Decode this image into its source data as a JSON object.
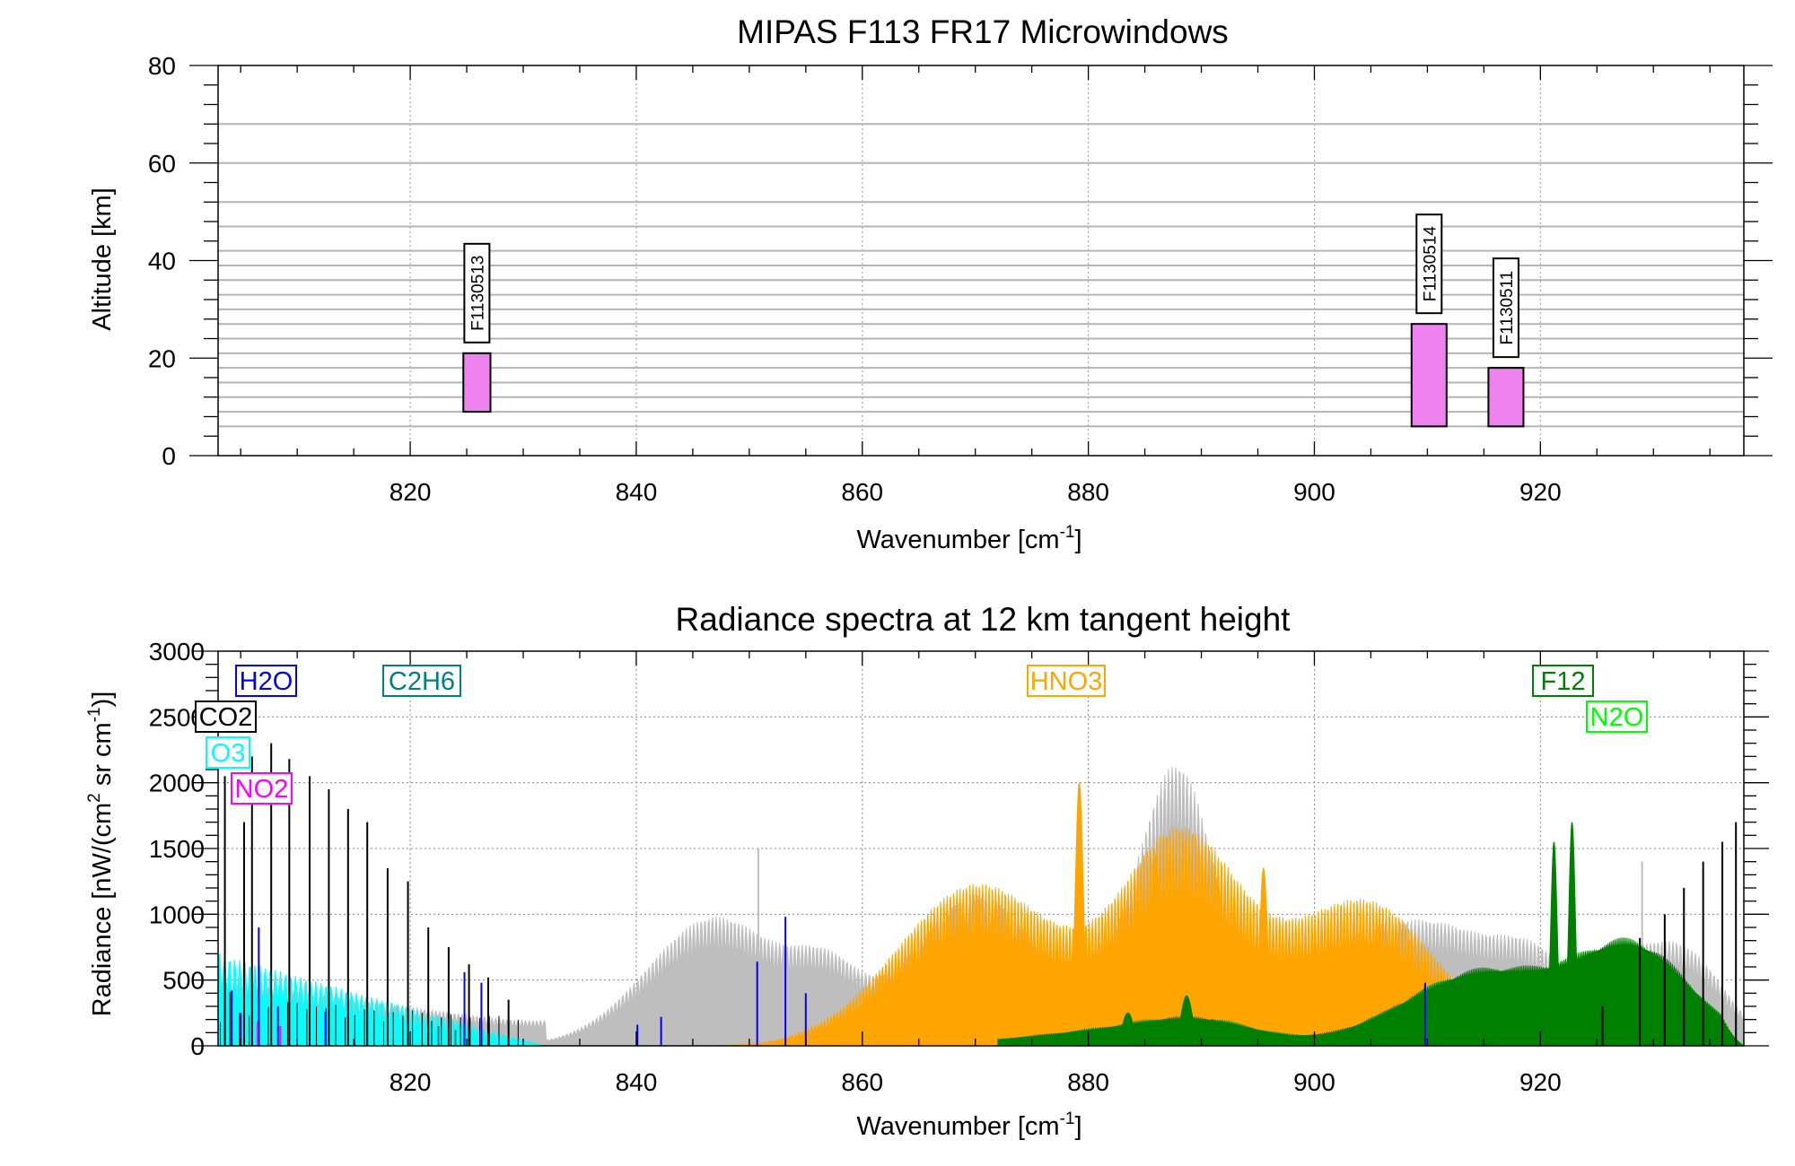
{
  "chart_data": [
    {
      "type": "bar",
      "title": "MIPAS F113 FR17 Microwindows",
      "xlabel": "Wavenumber [cm",
      "xlabel_sup": "-1",
      "xlabel_end": "]",
      "ylabel": "Altitude [km]",
      "xlim": [
        803,
        938
      ],
      "ylim": [
        0,
        80
      ],
      "xticks": [
        "820",
        "840",
        "860",
        "880",
        "900",
        "920"
      ],
      "yticks": [
        "0",
        "20",
        "40",
        "60",
        "80"
      ],
      "grid": true,
      "tangent_altitudes_km": [
        6,
        9,
        12,
        15,
        18,
        21,
        24,
        27,
        30,
        33,
        36,
        39,
        42,
        47,
        52,
        60,
        68
      ],
      "bar_color": "#ee82ee",
      "microwindows": [
        {
          "name": "F1130513",
          "x_start": 824.7,
          "x_end": 827.1,
          "alt_min": 9,
          "alt_max": 21
        },
        {
          "name": "F1130514",
          "x_start": 908.6,
          "x_end": 911.7,
          "alt_min": 6,
          "alt_max": 27
        },
        {
          "name": "F1130511",
          "x_start": 915.4,
          "x_end": 918.5,
          "alt_min": 6,
          "alt_max": 18
        }
      ]
    },
    {
      "type": "area",
      "title": "Radiance spectra at 12 km tangent height",
      "xlabel": "Wavenumber [cm",
      "xlabel_sup": "-1",
      "xlabel_end": "]",
      "ylabel": "Radiance [nW/(cm",
      "ylabel_sup1": "2",
      "ylabel_mid": " sr cm",
      "ylabel_sup2": "-1",
      "ylabel_end": ")]",
      "xlim": [
        803,
        938
      ],
      "ylim": [
        0,
        3000
      ],
      "xticks": [
        "820",
        "840",
        "860",
        "880",
        "900",
        "920"
      ],
      "yticks": [
        "0",
        "500",
        "1000",
        "1500",
        "2000",
        "2500",
        "3000"
      ],
      "grid": true,
      "total_spectrum_color": "#bebebe",
      "series": [
        {
          "name": "H2O",
          "color": "#0000ff",
          "lines": [
            [
              804.2,
              420
            ],
            [
              805.0,
              250
            ],
            [
              806.6,
              900
            ],
            [
              808.3,
              300
            ],
            [
              812.5,
              260
            ],
            [
              824.8,
              560
            ],
            [
              826.3,
              480
            ],
            [
              840.1,
              160
            ],
            [
              842.2,
              220
            ],
            [
              850.7,
              640
            ],
            [
              853.2,
              980
            ],
            [
              855.0,
              400
            ],
            [
              909.8,
              480
            ]
          ]
        },
        {
          "name": "C2H6",
          "color": "#008080",
          "lines": [
            [
              822.5,
              150
            ],
            [
              824.0,
              120
            ]
          ]
        },
        {
          "name": "CO2",
          "color": "#000000",
          "lines": [
            [
              803.6,
              2050
            ],
            [
              805.3,
              1700
            ],
            [
              806.0,
              2200
            ],
            [
              807.7,
              2300
            ],
            [
              809.3,
              2180
            ],
            [
              811.1,
              2050
            ],
            [
              812.8,
              1950
            ],
            [
              814.5,
              1800
            ],
            [
              816.2,
              1700
            ],
            [
              818.0,
              1350
            ],
            [
              819.8,
              1250
            ],
            [
              821.6,
              900
            ],
            [
              823.4,
              750
            ],
            [
              825.2,
              620
            ],
            [
              826.9,
              520
            ],
            [
              828.7,
              350
            ],
            [
              925.5,
              300
            ],
            [
              928.8,
              820
            ],
            [
              931.0,
              1000
            ],
            [
              932.7,
              1200
            ],
            [
              934.4,
              1400
            ],
            [
              936.1,
              1550
            ],
            [
              937.3,
              1700
            ]
          ]
        },
        {
          "name": "O3",
          "color": "#00ffff",
          "band_x": [
            803,
            832
          ],
          "band_peak": 700
        },
        {
          "name": "NO2",
          "color": "#ff00ff",
          "lines": [
            [
              806.5,
              180
            ],
            [
              808.5,
              150
            ]
          ]
        },
        {
          "name": "HNO3",
          "color": "#ffa500",
          "bands": [
            [
              870,
              1200,
              7
            ],
            [
              888,
              1300,
              5
            ],
            [
              905,
              850,
              6
            ]
          ],
          "peaks": [
            [
              879.2,
              2000
            ],
            [
              895.5,
              1350
            ],
            [
              886.0,
              1450
            ]
          ]
        },
        {
          "name": "F12",
          "color": "#008000",
          "bands": [
            [
              915,
              580,
              7
            ],
            [
              928.5,
              720,
              5
            ]
          ],
          "peaks": [
            [
              921.2,
              1550
            ],
            [
              922.8,
              1700
            ],
            [
              883.5,
              250
            ],
            [
              888.7,
              380
            ],
            [
              891.0,
              200
            ]
          ]
        },
        {
          "name": "N2O",
          "color": "#00ff00",
          "lines": []
        }
      ],
      "legend": [
        {
          "text": "H2O",
          "color": "#0000ff"
        },
        {
          "text": "C2H6",
          "color": "#008080"
        },
        {
          "text": "CO2",
          "color": "#000000"
        },
        {
          "text": "O3",
          "color": "#00ffff"
        },
        {
          "text": "NO2",
          "color": "#ff00ff"
        },
        {
          "text": "HNO3",
          "color": "#ffa500"
        },
        {
          "text": "F12",
          "color": "#008000"
        },
        {
          "text": "N2O",
          "color": "#00ff00"
        }
      ]
    }
  ]
}
